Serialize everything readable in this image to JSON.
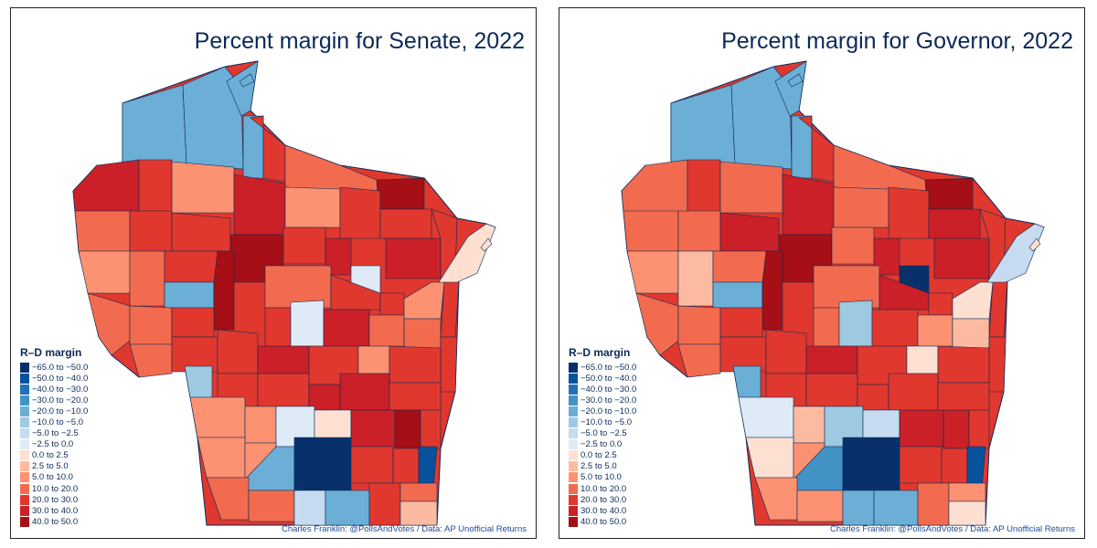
{
  "panels": [
    {
      "title": "Percent margin for Senate, 2022",
      "legend_title": "R–D margin",
      "credit": "Charles Franklin: @PollsAndVotes / Data: AP Unofficial Returns"
    },
    {
      "title": "Percent margin for Governor, 2022",
      "legend_title": "R–D margin",
      "credit": "Charles Franklin: @PollsAndVotes / Data: AP Unofficial Returns"
    }
  ],
  "legend": [
    {
      "label": "−65.0 to −50.0",
      "color": "#08306b"
    },
    {
      "label": "−50.0 to −40.0",
      "color": "#08519c"
    },
    {
      "label": "−40.0 to −30.0",
      "color": "#2171b5"
    },
    {
      "label": "−30.0 to −20.0",
      "color": "#4292c6"
    },
    {
      "label": "−20.0 to −10.0",
      "color": "#6baed6"
    },
    {
      "label": "−10.0 to −5.0",
      "color": "#9ecae1"
    },
    {
      "label": "−5.0 to −2.5",
      "color": "#c6dbef"
    },
    {
      "label": "−2.5 to 0.0",
      "color": "#deebf7"
    },
    {
      "label": "0.0 to 2.5",
      "color": "#fde0d2"
    },
    {
      "label": "2.5 to 5.0",
      "color": "#fcbba1"
    },
    {
      "label": "5.0 to 10.0",
      "color": "#fc9272"
    },
    {
      "label": "10.0 to 20.0",
      "color": "#f26b4f"
    },
    {
      "label": "20.0 to 30.0",
      "color": "#e0382e"
    },
    {
      "label": "30.0 to 40.0",
      "color": "#cb2027"
    },
    {
      "label": "40.0 to 50.0",
      "color": "#a50f15"
    }
  ]
}
